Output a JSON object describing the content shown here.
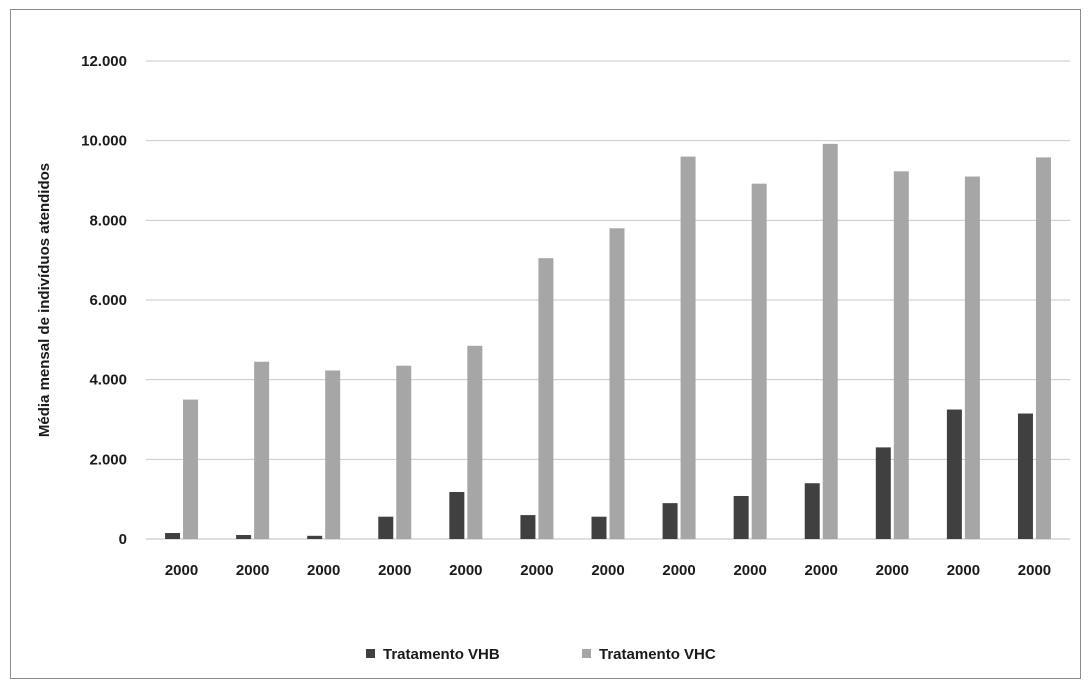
{
  "chart_data": {
    "type": "bar",
    "title": "",
    "xlabel": "",
    "ylabel": "Média mensal de indivíduos atendidos",
    "ylim": [
      0,
      12000
    ],
    "yticks": [
      "0",
      "2.000",
      "4.000",
      "6.000",
      "8.000",
      "10.000",
      "12.000"
    ],
    "ytick_values": [
      0,
      2000,
      4000,
      6000,
      8000,
      10000,
      12000
    ],
    "categories": [
      "2000",
      "2000",
      "2000",
      "2000",
      "2000",
      "2000",
      "2000",
      "2000",
      "2000",
      "2000",
      "2000",
      "2000",
      "2000"
    ],
    "series": [
      {
        "name": "Tratamento VHB",
        "color": "#404040",
        "values": [
          150,
          100,
          80,
          560,
          1180,
          600,
          560,
          900,
          1080,
          1400,
          2300,
          3250,
          3150
        ]
      },
      {
        "name": "Tratamento VHC",
        "color": "#a6a6a6",
        "values": [
          3500,
          4450,
          4230,
          4350,
          4850,
          7050,
          7800,
          9600,
          8920,
          9920,
          9230,
          9100,
          9580
        ]
      }
    ],
    "grid": true,
    "legend_position": "bottom"
  }
}
